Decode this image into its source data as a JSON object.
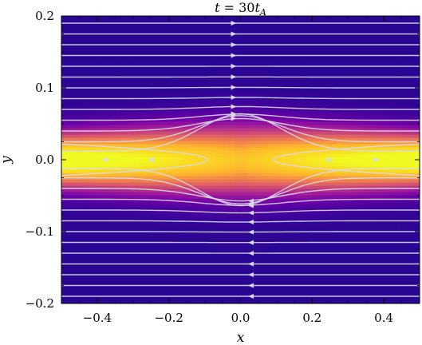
{
  "chart_data": {
    "type": "heatmap",
    "title": "t = 30t_A",
    "title_parts": {
      "prefix": "t = 30",
      "var": "t",
      "sub": "A"
    },
    "xlabel": "x",
    "ylabel": "y",
    "xlim": [
      -0.5,
      0.5
    ],
    "ylim": [
      -0.2,
      0.2
    ],
    "x_ticks": [
      -0.4,
      -0.2,
      0.0,
      0.2,
      0.4
    ],
    "x_tick_labels": [
      "−0.4",
      "−0.2",
      "0.0",
      "0.2",
      "0.4"
    ],
    "y_ticks": [
      -0.2,
      -0.1,
      0.0,
      0.1,
      0.2
    ],
    "y_tick_labels": [
      "−0.2",
      "−0.1",
      "0.0",
      "0.1",
      "0.2"
    ],
    "colormap": "plasma",
    "colormap_stops": [
      "#0d0887",
      "#3a049a",
      "#6a00a8",
      "#9c179e",
      "#c43e7f",
      "#e16462",
      "#f48849",
      "#fdb62f",
      "#fcd225",
      "#f0f921"
    ],
    "field": {
      "description_model": "intensity peaks along y=0, strongest at |x|=0.5, weakest near x=0",
      "y_half_width": 0.035,
      "center_peak": 0.72,
      "edge_peak": 1.0
    },
    "streamlines": {
      "color": "#d9d9e6",
      "y_levels": [
        -0.19,
        -0.175,
        -0.16,
        -0.145,
        -0.13,
        -0.115,
        -0.1,
        -0.085,
        -0.07,
        -0.055,
        -0.04,
        -0.025,
        -0.012,
        0.012,
        0.025,
        0.04,
        0.055,
        0.07,
        0.085,
        0.1,
        0.115,
        0.13,
        0.145,
        0.16,
        0.175,
        0.19
      ],
      "upper_direction": "right",
      "lower_direction": "left",
      "separatrix_x": [
        -0.09,
        0.09
      ]
    }
  }
}
